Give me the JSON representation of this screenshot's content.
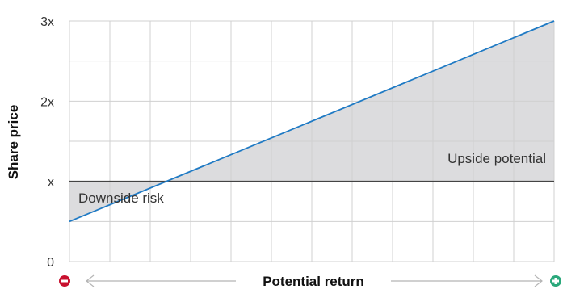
{
  "chart_data": {
    "type": "area",
    "title": "",
    "xlabel": "Potential return",
    "ylabel": "Share price",
    "ylim": [
      0,
      3
    ],
    "yticks": [
      {
        "value": 0,
        "label": "0"
      },
      {
        "value": 1,
        "label": "x"
      },
      {
        "value": 2,
        "label": "2x"
      },
      {
        "value": 3,
        "label": "3x"
      }
    ],
    "grid": true,
    "baseline": 1,
    "series": [
      {
        "x": [
          0,
          1
        ],
        "y": [
          0.5,
          3
        ]
      }
    ],
    "annotations": {
      "downside": "Downside risk",
      "upside": "Upside potential"
    },
    "colors": {
      "line": "#1f7ac4",
      "baseline": "#444444",
      "fill": "#dcdcde",
      "grid": "#d0d0d0",
      "minus": "#c8102e",
      "plus": "#2aa87b"
    },
    "x_axis_ends": {
      "left_icon": "minus-circle-icon",
      "right_icon": "plus-circle-icon"
    }
  }
}
